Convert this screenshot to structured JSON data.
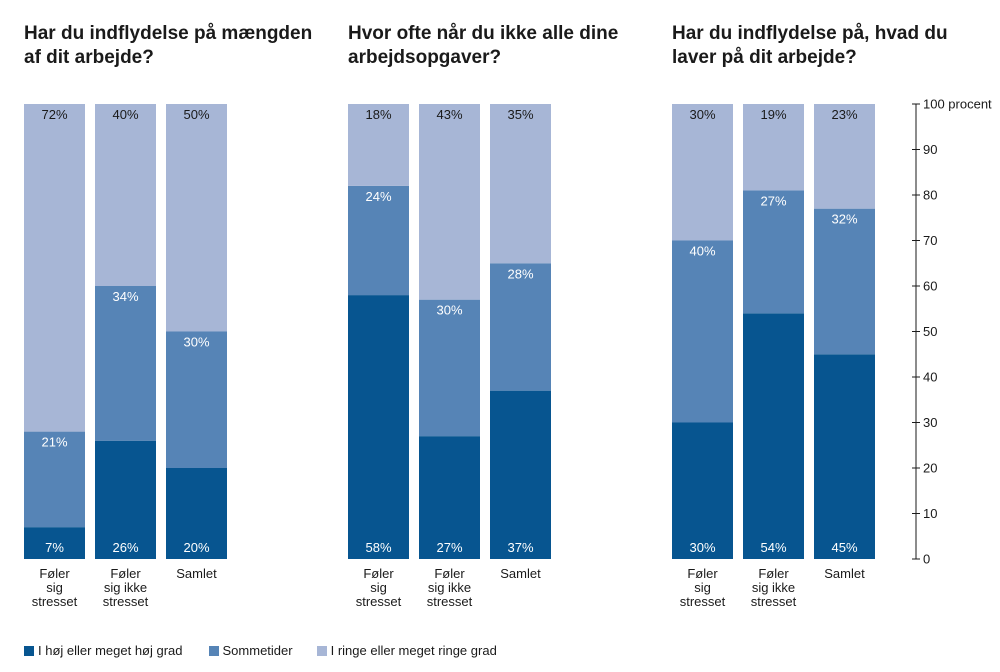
{
  "chart_data": {
    "type": "bar",
    "stacked": true,
    "y_unit_label": "100 procent",
    "ylim": [
      0,
      100
    ],
    "yticks": [
      0,
      10,
      20,
      30,
      40,
      50,
      60,
      70,
      80,
      90
    ],
    "grid": false,
    "legend_position": "bottom-left",
    "categories": [
      [
        "Føler",
        "sig",
        "stresset"
      ],
      [
        "Føler",
        "sig ikke",
        "stresset"
      ],
      [
        "Samlet"
      ]
    ],
    "series": [
      {
        "name": "I høj eller meget høj grad",
        "color": "#075590"
      },
      {
        "name": "Sommetider",
        "color": "#5684b6"
      },
      {
        "name": "I ringe eller meget ringe grad",
        "color": "#a7b6d6"
      }
    ],
    "panels": [
      {
        "title": "Har du indflydelse på mængden af dit arbejde?",
        "values": [
          [
            7,
            21,
            72
          ],
          [
            26,
            34,
            40
          ],
          [
            20,
            30,
            50
          ]
        ]
      },
      {
        "title": "Hvor ofte når du ikke alle dine arbejdsopgaver?",
        "values": [
          [
            58,
            24,
            18
          ],
          [
            27,
            30,
            43
          ],
          [
            37,
            28,
            35
          ]
        ]
      },
      {
        "title": "Har du indflydelse på, hvad du laver på dit arbejde?",
        "values": [
          [
            30,
            40,
            30
          ],
          [
            54,
            27,
            19
          ],
          [
            45,
            32,
            23
          ]
        ]
      }
    ]
  }
}
